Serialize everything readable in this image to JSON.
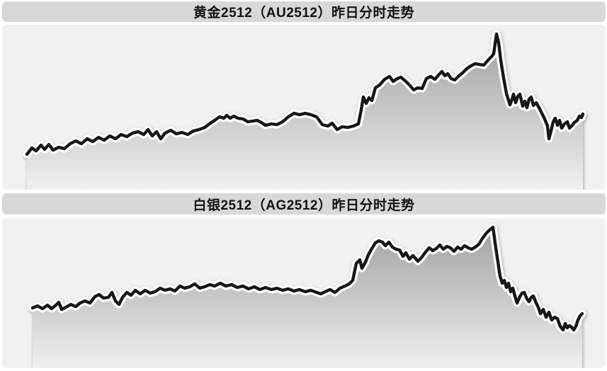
{
  "panels": [
    {
      "title": "黄金2512（AU2512）昨日分时走势",
      "instrument": "黄金2512",
      "code": "AU2512"
    },
    {
      "title": "白银2512（AG2512）昨日分时走势",
      "instrument": "白银2512",
      "code": "AG2512"
    }
  ],
  "style": {
    "page_bg": "#ffffff",
    "titlebar_bg": "#d8d8d8",
    "chart_bg": "#f1f1f1",
    "title_color": "#111111",
    "line_color": "#141414",
    "halo_color": "#ffffff",
    "fill_top": "#9c9c9c",
    "fill_bottom": "#f0f0f0"
  },
  "chart_data": [
    {
      "id": "au2512",
      "type": "line",
      "title": "黄金2512（AU2512）昨日分时走势",
      "series_name": "AU2512",
      "axes_visible": false,
      "grid": false,
      "legend": false,
      "note": "no axis ticks or labels shown; points are [x,y] pixel positions in the 852x233 chart box, y down (smaller y = higher price)",
      "points": [
        [
          35,
          183
        ],
        [
          42,
          174
        ],
        [
          48,
          178
        ],
        [
          55,
          170
        ],
        [
          60,
          176
        ],
        [
          66,
          169
        ],
        [
          72,
          177
        ],
        [
          80,
          173
        ],
        [
          88,
          175
        ],
        [
          96,
          168
        ],
        [
          104,
          164
        ],
        [
          112,
          168
        ],
        [
          120,
          161
        ],
        [
          128,
          165
        ],
        [
          136,
          159
        ],
        [
          144,
          163
        ],
        [
          152,
          157
        ],
        [
          160,
          161
        ],
        [
          168,
          155
        ],
        [
          176,
          158
        ],
        [
          184,
          153
        ],
        [
          192,
          151
        ],
        [
          200,
          155
        ],
        [
          206,
          148
        ],
        [
          212,
          157
        ],
        [
          218,
          151
        ],
        [
          224,
          161
        ],
        [
          230,
          153
        ],
        [
          238,
          149
        ],
        [
          246,
          154
        ],
        [
          254,
          152
        ],
        [
          262,
          155
        ],
        [
          270,
          150
        ],
        [
          278,
          148
        ],
        [
          286,
          145
        ],
        [
          294,
          139
        ],
        [
          300,
          135
        ],
        [
          307,
          130
        ],
        [
          313,
          132
        ],
        [
          317,
          128
        ],
        [
          322,
          132
        ],
        [
          327,
          129
        ],
        [
          333,
          132
        ],
        [
          340,
          133
        ],
        [
          347,
          137
        ],
        [
          354,
          136
        ],
        [
          360,
          135
        ],
        [
          366,
          138
        ],
        [
          372,
          142
        ],
        [
          380,
          140
        ],
        [
          388,
          141
        ],
        [
          396,
          137
        ],
        [
          404,
          130
        ],
        [
          412,
          125
        ],
        [
          420,
          127
        ],
        [
          428,
          125
        ],
        [
          436,
          127
        ],
        [
          444,
          130
        ],
        [
          452,
          141
        ],
        [
          460,
          143
        ],
        [
          466,
          139
        ],
        [
          473,
          148
        ],
        [
          480,
          144
        ],
        [
          488,
          145
        ],
        [
          496,
          143
        ],
        [
          503,
          140
        ],
        [
          507,
          120
        ],
        [
          510,
          102
        ],
        [
          514,
          111
        ],
        [
          518,
          103
        ],
        [
          522,
          107
        ],
        [
          527,
          89
        ],
        [
          533,
          85
        ],
        [
          540,
          77
        ],
        [
          547,
          73
        ],
        [
          552,
          80
        ],
        [
          558,
          76
        ],
        [
          563,
          74
        ],
        [
          570,
          80
        ],
        [
          576,
          86
        ],
        [
          581,
          92
        ],
        [
          587,
          89
        ],
        [
          593,
          90
        ],
        [
          599,
          76
        ],
        [
          605,
          73
        ],
        [
          611,
          77
        ],
        [
          617,
          70
        ],
        [
          621,
          66
        ],
        [
          625,
          72
        ],
        [
          629,
          69
        ],
        [
          634,
          76
        ],
        [
          639,
          78
        ],
        [
          644,
          73
        ],
        [
          650,
          68
        ],
        [
          656,
          62
        ],
        [
          662,
          58
        ],
        [
          668,
          55
        ],
        [
          674,
          56
        ],
        [
          680,
          57
        ],
        [
          686,
          50
        ],
        [
          691,
          45
        ],
        [
          694,
          41
        ],
        [
          698,
          13
        ],
        [
          701,
          25
        ],
        [
          704,
          50
        ],
        [
          708,
          75
        ],
        [
          712,
          97
        ],
        [
          717,
          113
        ],
        [
          720,
          105
        ],
        [
          722,
          98
        ],
        [
          725,
          110
        ],
        [
          728,
          101
        ],
        [
          731,
          98
        ],
        [
          735,
          115
        ],
        [
          738,
          108
        ],
        [
          741,
          117
        ],
        [
          744,
          105
        ],
        [
          747,
          102
        ],
        [
          750,
          114
        ],
        [
          754,
          110
        ],
        [
          758,
          117
        ],
        [
          762,
          125
        ],
        [
          766,
          133
        ],
        [
          770,
          143
        ],
        [
          772,
          161
        ],
        [
          775,
          150
        ],
        [
          778,
          137
        ],
        [
          781,
          132
        ],
        [
          784,
          142
        ],
        [
          787,
          135
        ],
        [
          790,
          146
        ],
        [
          794,
          140
        ],
        [
          798,
          137
        ],
        [
          801,
          146
        ],
        [
          804,
          143
        ],
        [
          808,
          138
        ],
        [
          812,
          135
        ],
        [
          815,
          129
        ],
        [
          818,
          131
        ],
        [
          820,
          126
        ]
      ]
    },
    {
      "id": "ag2512",
      "type": "line",
      "title": "白银2512（AG2512）昨日分时走势",
      "series_name": "AG2512",
      "axes_visible": false,
      "grid": false,
      "legend": false,
      "note": "no axis ticks or labels shown; points are [x,y] pixel positions in the 852x212 chart box, y down (smaller y = higher price)",
      "points": [
        [
          43,
          127
        ],
        [
          50,
          124
        ],
        [
          57,
          128
        ],
        [
          64,
          123
        ],
        [
          70,
          128
        ],
        [
          77,
          122
        ],
        [
          80,
          119
        ],
        [
          84,
          129
        ],
        [
          90,
          126
        ],
        [
          97,
          122
        ],
        [
          104,
          125
        ],
        [
          110,
          120
        ],
        [
          117,
          117
        ],
        [
          124,
          120
        ],
        [
          131,
          111
        ],
        [
          137,
          108
        ],
        [
          143,
          113
        ],
        [
          150,
          112
        ],
        [
          155,
          105
        ],
        [
          160,
          117
        ],
        [
          165,
          122
        ],
        [
          170,
          112
        ],
        [
          176,
          105
        ],
        [
          182,
          109
        ],
        [
          188,
          102
        ],
        [
          195,
          107
        ],
        [
          202,
          102
        ],
        [
          209,
          106
        ],
        [
          216,
          104
        ],
        [
          223,
          99
        ],
        [
          230,
          102
        ],
        [
          237,
          100
        ],
        [
          244,
          103
        ],
        [
          251,
          96
        ],
        [
          258,
          99
        ],
        [
          265,
          97
        ],
        [
          272,
          93
        ],
        [
          279,
          99
        ],
        [
          286,
          97
        ],
        [
          293,
          94
        ],
        [
          300,
          96
        ],
        [
          308,
          92
        ],
        [
          316,
          96
        ],
        [
          324,
          94
        ],
        [
          332,
          98
        ],
        [
          340,
          96
        ],
        [
          348,
          100
        ],
        [
          356,
          97
        ],
        [
          364,
          101
        ],
        [
          372,
          98
        ],
        [
          380,
          101
        ],
        [
          388,
          99
        ],
        [
          396,
          102
        ],
        [
          404,
          100
        ],
        [
          412,
          103
        ],
        [
          420,
          101
        ],
        [
          428,
          104
        ],
        [
          436,
          102
        ],
        [
          444,
          105
        ],
        [
          450,
          107
        ],
        [
          456,
          104
        ],
        [
          463,
          101
        ],
        [
          470,
          105
        ],
        [
          477,
          99
        ],
        [
          484,
          96
        ],
        [
          490,
          93
        ],
        [
          495,
          88
        ],
        [
          500,
          64
        ],
        [
          505,
          59
        ],
        [
          508,
          71
        ],
        [
          513,
          62
        ],
        [
          517,
          52
        ],
        [
          522,
          43
        ],
        [
          527,
          35
        ],
        [
          532,
          32
        ],
        [
          537,
          34
        ],
        [
          541,
          39
        ],
        [
          546,
          34
        ],
        [
          551,
          41
        ],
        [
          556,
          44
        ],
        [
          561,
          45
        ],
        [
          566,
          54
        ],
        [
          570,
          49
        ],
        [
          575,
          58
        ],
        [
          580,
          53
        ],
        [
          587,
          61
        ],
        [
          592,
          56
        ],
        [
          597,
          49
        ],
        [
          603,
          42
        ],
        [
          608,
          46
        ],
        [
          613,
          43
        ],
        [
          618,
          38
        ],
        [
          623,
          44
        ],
        [
          628,
          40
        ],
        [
          633,
          42
        ],
        [
          638,
          47
        ],
        [
          643,
          41
        ],
        [
          648,
          44
        ],
        [
          653,
          39
        ],
        [
          658,
          42
        ],
        [
          663,
          44
        ],
        [
          668,
          41
        ],
        [
          673,
          37
        ],
        [
          678,
          29
        ],
        [
          683,
          22
        ],
        [
          688,
          17
        ],
        [
          693,
          13
        ],
        [
          697,
          42
        ],
        [
          700,
          62
        ],
        [
          703,
          82
        ],
        [
          706,
          92
        ],
        [
          709,
          88
        ],
        [
          712,
          98
        ],
        [
          715,
          92
        ],
        [
          718,
          104
        ],
        [
          721,
          99
        ],
        [
          724,
          110
        ],
        [
          727,
          120
        ],
        [
          731,
          111
        ],
        [
          734,
          106
        ],
        [
          737,
          105
        ],
        [
          741,
          114
        ],
        [
          744,
          118
        ],
        [
          747,
          112
        ],
        [
          750,
          110
        ],
        [
          754,
          120
        ],
        [
          757,
          126
        ],
        [
          760,
          135
        ],
        [
          764,
          129
        ],
        [
          768,
          140
        ],
        [
          772,
          133
        ],
        [
          776,
          144
        ],
        [
          780,
          140
        ],
        [
          784,
          142
        ],
        [
          788,
          153
        ],
        [
          792,
          158
        ],
        [
          795,
          149
        ],
        [
          798,
          155
        ],
        [
          801,
          152
        ],
        [
          804,
          154
        ],
        [
          807,
          158
        ],
        [
          810,
          153
        ],
        [
          813,
          144
        ],
        [
          816,
          138
        ],
        [
          819,
          135
        ]
      ]
    }
  ]
}
